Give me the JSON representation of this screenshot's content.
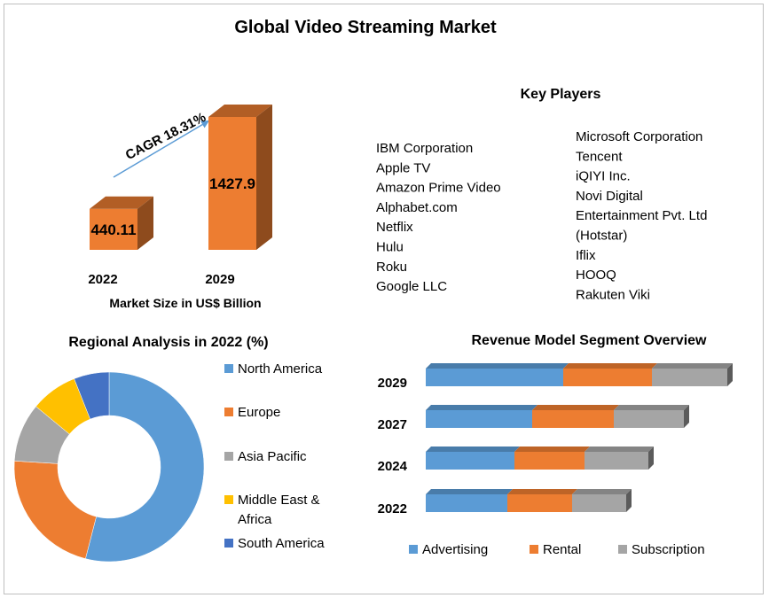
{
  "title": "Global Video Streaming Market",
  "colors": {
    "blue": "#5b9bd5",
    "orange": "#ed7d31",
    "gray": "#a5a5a5",
    "gold": "#ffc000",
    "darkblue": "#4472c4"
  },
  "chart_data": [
    {
      "type": "bar",
      "categories": [
        "2022",
        "2029"
      ],
      "values": [
        440.11,
        1427.9
      ],
      "data_labels": [
        "440.11",
        "1427.9"
      ],
      "xlabel": "Market Size in US$ Billion",
      "annotation": "CAGR 18.31%"
    },
    {
      "type": "pie",
      "title": "Regional Analysis in 2022 (%)",
      "labels": [
        "North America",
        "Europe",
        "Asia Pacific",
        "Middle East & Africa",
        "South America"
      ],
      "legend_lines": [
        [
          "North America"
        ],
        [
          "Europe"
        ],
        [
          "Asia Pacific"
        ],
        [
          "Middle East &",
          "Africa"
        ],
        [
          "South America"
        ]
      ],
      "values": [
        54,
        22,
        10,
        8,
        6
      ],
      "legend": "right"
    },
    {
      "type": "bar",
      "orientation": "horizontal-stacked",
      "title": "Revenue Model Segment Overview",
      "categories": [
        "2029",
        "2027",
        "2024",
        "2022"
      ],
      "series": [
        {
          "name": "Advertising",
          "values": [
            155,
            120,
            100,
            92
          ]
        },
        {
          "name": "Rental",
          "values": [
            100,
            92,
            79,
            73
          ]
        },
        {
          "name": "Subscription",
          "values": [
            85,
            79,
            72,
            61
          ]
        }
      ],
      "legend": "bottom"
    }
  ],
  "key_players": {
    "title": "Key Players",
    "left": [
      "IBM Corporation",
      "Apple TV",
      "Amazon Prime Video",
      "Alphabet.com",
      "Netflix",
      "Hulu",
      "Roku",
      "Google LLC"
    ],
    "right": [
      "Microsoft Corporation",
      "Tencent",
      "iQIYI Inc.",
      "Novi Digital",
      "Entertainment  Pvt. Ltd",
      "(Hotstar)",
      "Iflix",
      "HOOQ",
      "Rakuten Viki"
    ]
  }
}
